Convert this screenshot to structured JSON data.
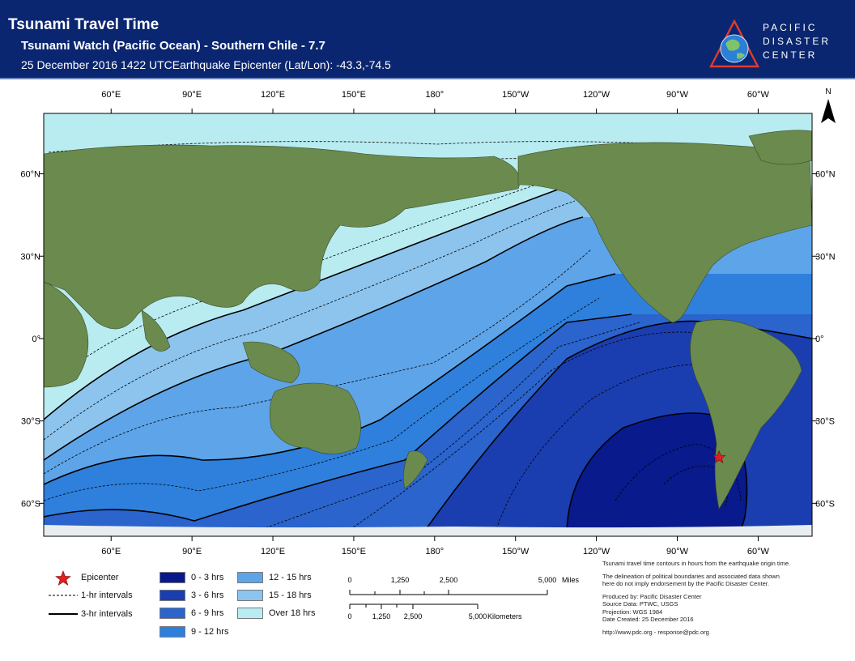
{
  "header": {
    "title": "Tsunami Travel Time",
    "subtitle": "Tsunami Watch (Pacific Ocean) - Southern Chile - 7.7",
    "datetime_line": "25 December 2016 1422 UTC",
    "epicenter_line": "Earthquake Epicenter (Lat/Lon): -43.3,-74.5"
  },
  "logo": {
    "line1": "PACIFIC",
    "line2": "DISASTER",
    "line3": "CENTER"
  },
  "map": {
    "north_label": "N",
    "top_lon_labels": [
      "60°E",
      "90°E",
      "120°E",
      "150°E",
      "180°",
      "150°W",
      "120°W",
      "90°W",
      "60°W"
    ],
    "bottom_lon_labels": [
      "60°E",
      "90°E",
      "120°E",
      "150°E",
      "180°",
      "150°W",
      "120°W",
      "90°W",
      "60°W"
    ],
    "left_lat_labels": [
      "60°N",
      "30°N",
      "0°",
      "30°S",
      "60°S"
    ],
    "right_lat_labels": [
      "60°N",
      "30°N",
      "0°",
      "30°S",
      "60°S"
    ],
    "epicenter": {
      "lat": -43.3,
      "lon": -74.5
    },
    "colors": {
      "zone_0_3": "#081a8c",
      "zone_3_6": "#1a3eb0",
      "zone_6_9": "#2a64cc",
      "zone_9_12": "#2e80dc",
      "zone_12_15": "#5ea4e8",
      "zone_15_18": "#8cc4ee",
      "zone_over_18": "#b8ecf0",
      "land": "#6b8a4e",
      "epicenter": "#e02020"
    }
  },
  "legend": {
    "epicenter_label": "Epicenter",
    "one_hr_label": "1-hr intervals",
    "three_hr_label": "3-hr intervals",
    "zones": [
      "0 - 3 hrs",
      "3 - 6 hrs",
      "6 - 9 hrs",
      "9 - 12 hrs",
      "12 - 15 hrs",
      "15 - 18 hrs",
      "Over 18 hrs"
    ],
    "scale_miles": {
      "ticks": [
        "0",
        "1,250",
        "2,500",
        "5,000"
      ],
      "unit": "Miles"
    },
    "scale_km": {
      "ticks": [
        "0",
        "1,250",
        "2,500",
        "5,000"
      ],
      "unit": "Kilometers"
    }
  },
  "notes": {
    "line1": "Tsunami travel time contours in hours from the earthquake origin time.",
    "line2": "The delineation of political boundaries and associated data shown",
    "line3": "here do not imply endorsement by the Pacific Disaster Center.",
    "produced_by": "Produced by: Pacific Disaster Center",
    "source": "Source Data: PTWC, USGS",
    "projection": "Projection: WGS 1984",
    "date_created": "Date Created: 25 December 2016",
    "contact": "http://www.pdc.org - response@pdc.org"
  }
}
